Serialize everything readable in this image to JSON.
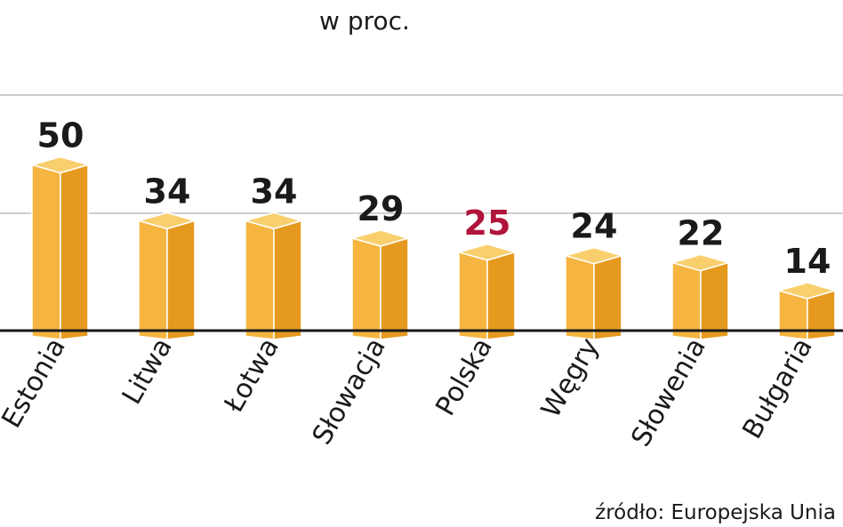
{
  "chart_data": {
    "type": "bar",
    "subtitle": "w proc.",
    "categories": [
      "Estonia",
      "Litwa",
      "Łotwa",
      "Słowacja",
      "Polska",
      "Węgry",
      "Słowenia",
      "Bułgaria"
    ],
    "values": [
      50,
      34,
      34,
      29,
      25,
      24,
      22,
      14
    ],
    "highlight_category": "Polska",
    "source": "źródło: Europejska Unia",
    "grid": true,
    "colors": {
      "bar_front": "#f5b540",
      "bar_side": "#e59a1f",
      "bar_top": "#f9cf6e",
      "value_text": "#1a1a1a",
      "highlight_text": "#b0153c",
      "grid": "#bdbdbd",
      "baseline": "#1a1a1a"
    }
  }
}
